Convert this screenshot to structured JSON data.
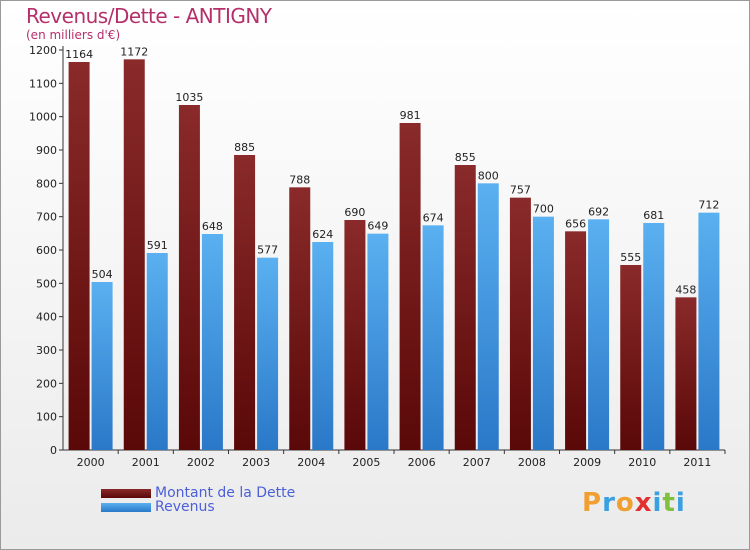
{
  "chart_data": {
    "type": "bar",
    "title": "Revenus/Dette - ANTIGNY",
    "subtitle": "(en milliers d'€)",
    "categories": [
      "2000",
      "2001",
      "2002",
      "2003",
      "2004",
      "2005",
      "2006",
      "2007",
      "2008",
      "2009",
      "2010",
      "2011"
    ],
    "series": [
      {
        "name": "Montant de la Dette",
        "color": "#7a1a1a",
        "values": [
          1164,
          1172,
          1035,
          885,
          788,
          690,
          981,
          855,
          757,
          656,
          555,
          458
        ]
      },
      {
        "name": "Revenus",
        "color": "#4aa3e8",
        "values": [
          504,
          591,
          648,
          577,
          624,
          649,
          674,
          800,
          700,
          692,
          681,
          712
        ]
      }
    ],
    "ylim": [
      0,
      1200
    ],
    "yticks": [
      0,
      100,
      200,
      300,
      400,
      500,
      600,
      700,
      800,
      900,
      1000,
      1100,
      1200
    ],
    "grid": false,
    "legend": "bottom-left"
  },
  "logo": {
    "letters": [
      "P",
      "r",
      "o",
      "x",
      "i",
      "t",
      "i"
    ],
    "colors": [
      "#f0a030",
      "#3aa0e0",
      "#f0a030",
      "#e03030",
      "#3aa0e0",
      "#80c040",
      "#3aa0e0"
    ]
  }
}
